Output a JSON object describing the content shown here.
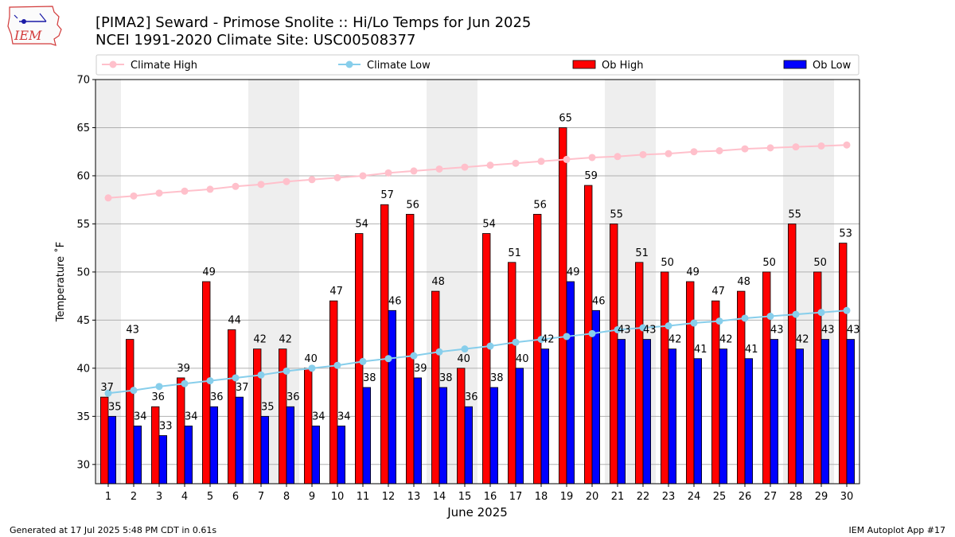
{
  "header": {
    "logo_text": "IEM",
    "title_line1": "[PIMA2] Seward - Primose Snolite :: Hi/Lo Temps for Jun 2025",
    "title_line2": "NCEI 1991-2020 Climate Site: USC00508377"
  },
  "footer": {
    "left": "Generated at 17 Jul 2025 5:48 PM CDT in 0.61s",
    "right": "IEM Autoplot App #17"
  },
  "colors": {
    "ob_high": "#ff0000",
    "ob_low": "#0000ff",
    "climate_high": "#ffc0cb",
    "climate_low": "#87ceeb",
    "weekend_shade": "#eeeeee",
    "grid": "#b0b0b0"
  },
  "chart_data": {
    "type": "bar",
    "xlabel": "June 2025",
    "ylabel": "Temperature $^\\circ$F",
    "ylabel_display": "Temperature ˚F",
    "ylim": [
      28,
      70
    ],
    "yticks": [
      30,
      35,
      40,
      45,
      50,
      55,
      60,
      65,
      70
    ],
    "grid": "horizontal",
    "legend_position": "top",
    "categories": [
      "1",
      "2",
      "3",
      "4",
      "5",
      "6",
      "7",
      "8",
      "9",
      "10",
      "11",
      "12",
      "13",
      "14",
      "15",
      "16",
      "17",
      "18",
      "19",
      "20",
      "21",
      "22",
      "23",
      "24",
      "25",
      "26",
      "27",
      "28",
      "29",
      "30"
    ],
    "weekend_shaded_days": [
      1,
      7,
      8,
      14,
      15,
      21,
      22,
      28,
      29
    ],
    "series": [
      {
        "name": "Climate High",
        "kind": "line",
        "marker": "circle",
        "values": [
          57.7,
          57.9,
          58.2,
          58.4,
          58.6,
          58.9,
          59.1,
          59.4,
          59.6,
          59.8,
          60.0,
          60.3,
          60.5,
          60.7,
          60.9,
          61.1,
          61.3,
          61.5,
          61.7,
          61.9,
          62.0,
          62.2,
          62.3,
          62.5,
          62.6,
          62.8,
          62.9,
          63.0,
          63.1,
          63.2
        ]
      },
      {
        "name": "Climate Low",
        "kind": "line",
        "marker": "circle",
        "values": [
          37.4,
          37.7,
          38.1,
          38.4,
          38.7,
          39.0,
          39.3,
          39.7,
          40.0,
          40.3,
          40.7,
          41.0,
          41.3,
          41.7,
          42.0,
          42.3,
          42.7,
          43.0,
          43.3,
          43.6,
          44.0,
          44.2,
          44.4,
          44.7,
          44.9,
          45.2,
          45.4,
          45.6,
          45.8,
          46.0
        ]
      },
      {
        "name": "Ob High",
        "kind": "bar",
        "values": [
          37,
          43,
          36,
          39,
          49,
          44,
          42,
          42,
          40,
          47,
          54,
          57,
          56,
          48,
          40,
          54,
          51,
          56,
          65,
          59,
          55,
          51,
          50,
          49,
          47,
          48,
          50,
          55,
          50,
          53
        ]
      },
      {
        "name": "Ob Low",
        "kind": "bar",
        "values": [
          35,
          34,
          33,
          34,
          36,
          37,
          35,
          36,
          34,
          34,
          38,
          46,
          39,
          38,
          36,
          38,
          40,
          42,
          49,
          46,
          43,
          43,
          42,
          41,
          42,
          41,
          43,
          42,
          43,
          43
        ]
      }
    ]
  }
}
